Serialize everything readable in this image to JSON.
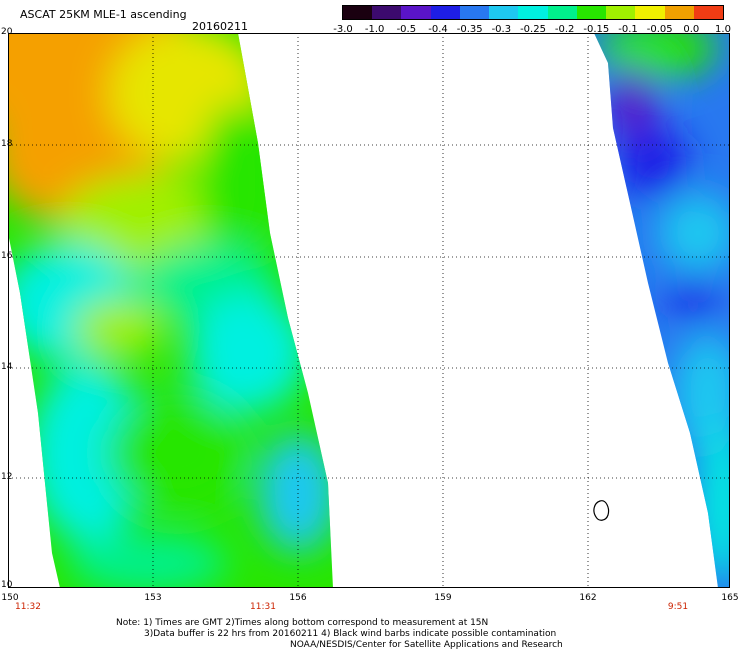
{
  "header": {
    "title": "ASCAT 25KM MLE-1 ascending",
    "date": "20160211"
  },
  "colorbar": {
    "labels": [
      "-3.0",
      "-1.0",
      "-0.5",
      "-0.4",
      "-0.35",
      "-0.3",
      "-0.25",
      "-0.2",
      "-0.15",
      "-0.1",
      "-0.05",
      "0.0",
      "1.0"
    ],
    "colors": [
      "#1a0010",
      "#3c0a6e",
      "#5a14c8",
      "#1e1ee6",
      "#2878f0",
      "#1ec8f0",
      "#00f0e0",
      "#00f08c",
      "#28e600",
      "#a0f000",
      "#f0f000",
      "#f0a000",
      "#f03c14"
    ]
  },
  "axes": {
    "lat_labels": [
      "20",
      "18",
      "16",
      "14",
      "12",
      "10"
    ],
    "lon_labels": [
      "150",
      "153",
      "156",
      "159",
      "162",
      "165"
    ],
    "times": [
      "11:32",
      "11:31",
      "9:51"
    ]
  },
  "notes": {
    "line1": "Note: 1) Times are GMT 2)Times along bottom correspond to measurement at 15N",
    "line2": "3)Data buffer is 22 hrs from 20160211 4) Black wind barbs indicate possible contamination",
    "line3": "NOAA/NESDIS/Center for Satellite Applications and Research"
  },
  "map_colors": {
    "orange": "#f5a000",
    "yellow": "#e6e600",
    "lime": "#a0f000",
    "green": "#28e600",
    "seagreen": "#00f08c",
    "cyan": "#00f0e0",
    "lightblue": "#1ec8f0",
    "blue": "#2878f0",
    "darkblue": "#1e1ee6",
    "purple": "#5a14c8"
  }
}
